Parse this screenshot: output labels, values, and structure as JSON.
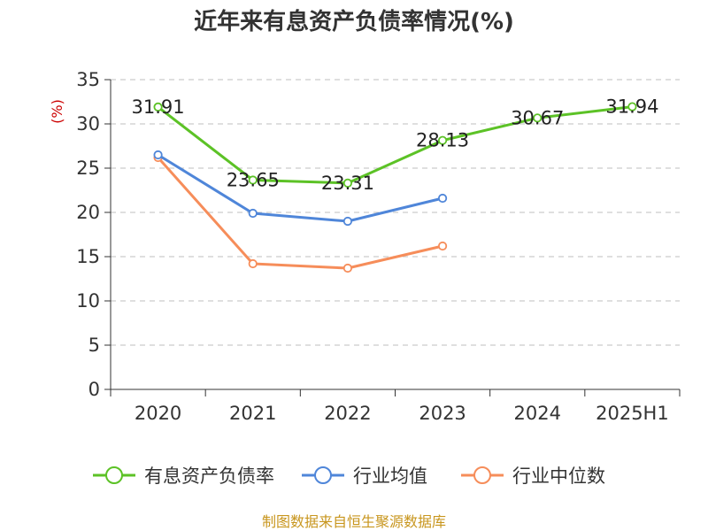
{
  "chart_data": {
    "type": "line",
    "title": "近年来有息资产负债率情况(%)",
    "ylabel": "(%)",
    "xlabel": "",
    "categories": [
      "2020",
      "2021",
      "2022",
      "2023",
      "2024",
      "2025H1"
    ],
    "ylim": [
      0,
      35
    ],
    "yticks": [
      0,
      5,
      10,
      15,
      20,
      25,
      30,
      35
    ],
    "grid": true,
    "legend_position": "bottom",
    "series": [
      {
        "name": "有息资产负债率",
        "color": "#5cc226",
        "values": [
          31.91,
          23.65,
          23.31,
          28.13,
          30.67,
          31.94
        ],
        "labels": [
          "31.91",
          "23.65",
          "23.31",
          "28.13",
          "30.67",
          "31.94"
        ]
      },
      {
        "name": "行业均值",
        "color": "#4f86d9",
        "values": [
          26.5,
          19.9,
          19.0,
          21.6,
          null,
          null
        ]
      },
      {
        "name": "行业中位数",
        "color": "#f68d5a",
        "values": [
          26.2,
          14.2,
          13.7,
          16.2,
          null,
          null
        ]
      }
    ],
    "source": "制图数据来自恒生聚源数据库"
  },
  "colors": {
    "axis": "#333333",
    "grid": "#cccccc",
    "ylabel": "#cc0000",
    "source": "#c8961e"
  }
}
